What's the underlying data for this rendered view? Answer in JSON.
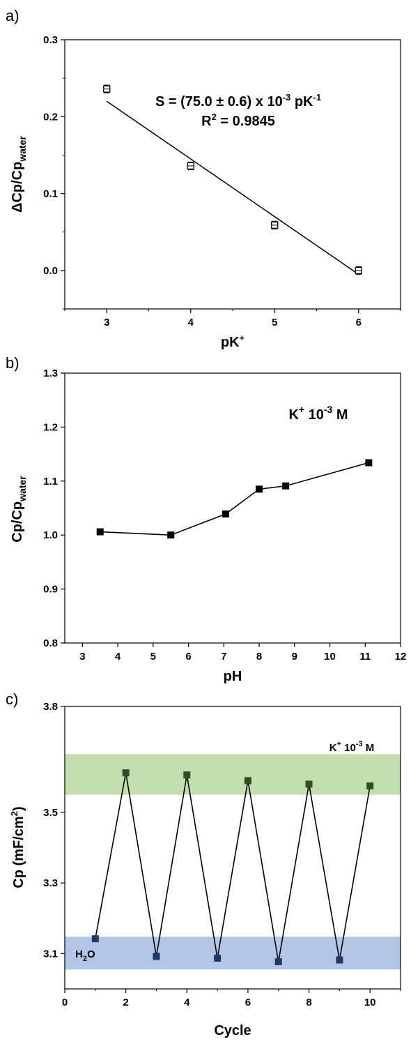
{
  "chart_data": [
    {
      "panel": "a)",
      "type": "scatter",
      "xlabel": "pK⁺",
      "ylabel": "ΔCp/Cpwater",
      "xlim": [
        2.5,
        6.5
      ],
      "ylim": [
        -0.05,
        0.3
      ],
      "xticks": [
        3,
        4,
        5,
        6
      ],
      "yticks": [
        0.0,
        0.1,
        0.2,
        0.3
      ],
      "ytick_labels": [
        "0.0",
        "0.1",
        "0.2",
        "0.3"
      ],
      "points": [
        {
          "x": 3,
          "y": 0.236,
          "err": 0.005
        },
        {
          "x": 4,
          "y": 0.136,
          "err": 0.005
        },
        {
          "x": 5,
          "y": 0.059,
          "err": 0.005
        },
        {
          "x": 6,
          "y": 0.0,
          "err": 0.005
        }
      ],
      "fit_line": {
        "x": [
          3,
          6
        ],
        "y": [
          0.22,
          -0.005
        ]
      },
      "annotation": [
        "S = (75.0 ± 0.6) x 10⁻³ pK⁻¹",
        "R² = 0.9845"
      ],
      "grid": false
    },
    {
      "panel": "b)",
      "type": "line",
      "xlabel": "pH",
      "ylabel": "Cp/Cpwater",
      "xlim": [
        2.5,
        12
      ],
      "ylim": [
        0.8,
        1.3
      ],
      "xticks": [
        3,
        4,
        5,
        6,
        7,
        8,
        9,
        10,
        11,
        12
      ],
      "yticks": [
        0.8,
        0.9,
        1.0,
        1.1,
        1.2,
        1.3
      ],
      "ytick_labels": [
        "0.8",
        "0.9",
        "1.0",
        "1.1",
        "1.2",
        "1.3"
      ],
      "points": [
        {
          "x": 3.5,
          "y": 1.006
        },
        {
          "x": 5.5,
          "y": 1.0
        },
        {
          "x": 7.05,
          "y": 1.039
        },
        {
          "x": 8.0,
          "y": 1.085
        },
        {
          "x": 8.75,
          "y": 1.091
        },
        {
          "x": 11.1,
          "y": 1.134
        }
      ],
      "annotation": "K⁺ 10⁻³ M",
      "grid": false
    },
    {
      "panel": "c)",
      "type": "line",
      "xlabel": "Cycle",
      "ylabel": "Cp (mF/cm²)",
      "xlim": [
        0,
        11
      ],
      "ylim": [
        3.0,
        3.8
      ],
      "xticks": [
        0,
        2,
        4,
        6,
        8,
        10
      ],
      "yticks": [
        3.1,
        3.3,
        3.5,
        3.8
      ],
      "ytick_labels": [
        "3.1",
        "3.3",
        "3.5",
        "3.8"
      ],
      "points": [
        {
          "x": 1,
          "y": 3.142
        },
        {
          "x": 2,
          "y": 3.612
        },
        {
          "x": 3,
          "y": 3.092
        },
        {
          "x": 4,
          "y": 3.606
        },
        {
          "x": 5,
          "y": 3.087
        },
        {
          "x": 6,
          "y": 3.59
        },
        {
          "x": 7,
          "y": 3.077
        },
        {
          "x": 8,
          "y": 3.58
        },
        {
          "x": 9,
          "y": 3.082
        },
        {
          "x": 10,
          "y": 3.575
        }
      ],
      "bands": [
        {
          "label": "K⁺ 10⁻³ M",
          "y": [
            3.55,
            3.665
          ],
          "color": "#c3dfae"
        },
        {
          "label": "H₂O",
          "y": [
            3.055,
            3.148
          ],
          "color": "#b4c6e7"
        }
      ],
      "point_colors": {
        "high": "#2f4f1e",
        "low": "#1f3864"
      },
      "grid": false
    }
  ]
}
